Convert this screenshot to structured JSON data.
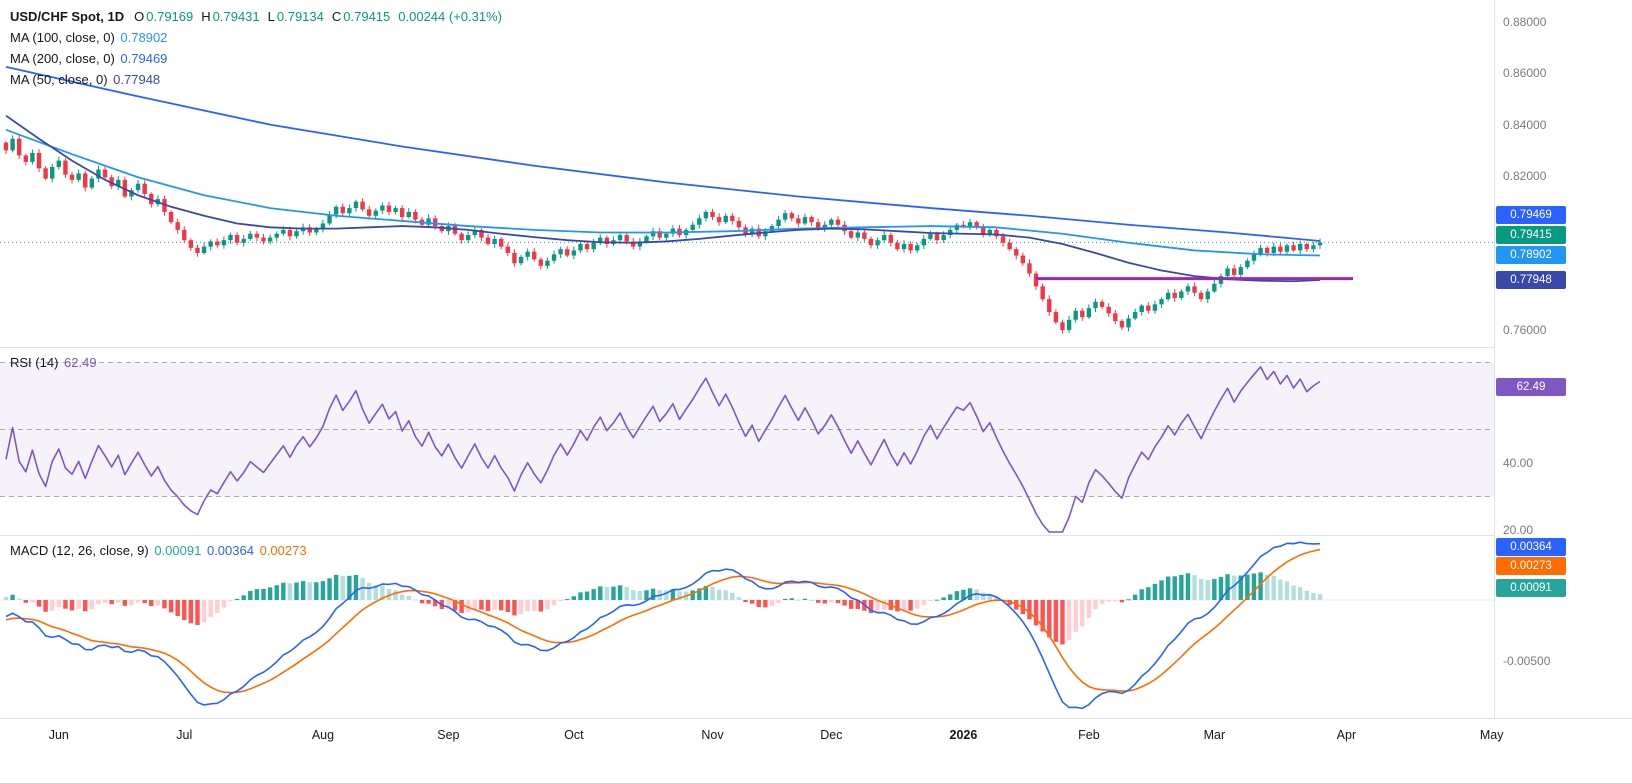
{
  "header": {
    "title": "USD/CHF Spot, 1D",
    "open_label": "O",
    "open": "0.79169",
    "high_label": "H",
    "high": "0.79431",
    "low_label": "L",
    "low": "0.79134",
    "close_label": "C",
    "close": "0.79415",
    "change": "0.00244 (+0.31%)"
  },
  "colors": {
    "up": "#089981",
    "down": "#F23645",
    "ma100": "#2196F3",
    "ma200": "#2962FF",
    "ma50": "#3949AB",
    "rsi": "#7E57C2",
    "macd": "#2962FF",
    "signal": "#FF6D00",
    "hist_pos": "#26A69A",
    "hist_pos_weak": "#B2DFDB",
    "hist_neg": "#FF5252",
    "hist_neg_weak": "#FFCDD2",
    "support": "#9C27B0",
    "axis_text": "#787b86",
    "band_line": "#9598a1"
  },
  "time_axis": {
    "labels": [
      {
        "text": "Jun",
        "i": 8
      },
      {
        "text": "Jul",
        "i": 27
      },
      {
        "text": "Aug",
        "i": 48
      },
      {
        "text": "Sep",
        "i": 67
      },
      {
        "text": "Oct",
        "i": 86
      },
      {
        "text": "Nov",
        "i": 107
      },
      {
        "text": "Dec",
        "i": 125
      },
      {
        "text": "2026",
        "i": 145,
        "year": true
      },
      {
        "text": "Feb",
        "i": 164
      },
      {
        "text": "Mar",
        "i": 183
      },
      {
        "text": "Apr",
        "i": 203
      },
      {
        "text": "May",
        "i": 225
      }
    ]
  },
  "chart_data": [
    {
      "type": "candlestick",
      "pane": "price",
      "symbol": "USD/CHF Spot",
      "interval": "1D",
      "ohlc_current": {
        "open": 0.79169,
        "high": 0.79431,
        "low": 0.79134,
        "close": 0.79415,
        "change": 0.00244,
        "change_pct": 0.31
      },
      "ylim": [
        0.7534,
        0.8886
      ],
      "yticks": [
        {
          "label": "0.88000",
          "value": 0.88
        },
        {
          "label": "0.86000",
          "value": 0.86
        },
        {
          "label": "0.84000",
          "value": 0.84
        },
        {
          "label": "0.82000",
          "value": 0.82
        },
        {
          "label": "0.76000",
          "value": 0.76
        }
      ],
      "first_open": 0.833,
      "history_closes": [
        0.842,
        0.8435,
        0.841,
        0.839,
        0.8415,
        0.84,
        0.838,
        0.8395,
        0.837,
        0.8385,
        0.836,
        0.8375,
        0.835,
        0.8365,
        0.834,
        0.8355,
        0.833,
        0.8345,
        0.8325,
        0.834,
        0.832,
        0.8335,
        0.8315,
        0.833,
        0.831,
        0.8325,
        0.8305,
        0.832,
        0.83,
        0.8315,
        0.8335,
        0.832,
        0.834,
        0.8325,
        0.833
      ],
      "closes": [
        0.83,
        0.8345,
        0.828,
        0.8255,
        0.829,
        0.823,
        0.819,
        0.8235,
        0.826,
        0.8205,
        0.8185,
        0.821,
        0.8155,
        0.819,
        0.8225,
        0.8195,
        0.816,
        0.8185,
        0.812,
        0.8145,
        0.817,
        0.813,
        0.809,
        0.811,
        0.806,
        0.802,
        0.799,
        0.795,
        0.792,
        0.79,
        0.7925,
        0.7945,
        0.793,
        0.795,
        0.797,
        0.794,
        0.7955,
        0.7975,
        0.796,
        0.7945,
        0.796,
        0.7975,
        0.799,
        0.7965,
        0.7985,
        0.8,
        0.798,
        0.7995,
        0.8015,
        0.805,
        0.808,
        0.8055,
        0.8075,
        0.81,
        0.807,
        0.8045,
        0.8065,
        0.8085,
        0.806,
        0.8075,
        0.804,
        0.806,
        0.803,
        0.801,
        0.8035,
        0.8005,
        0.7985,
        0.8005,
        0.7975,
        0.795,
        0.797,
        0.799,
        0.796,
        0.7935,
        0.7955,
        0.7925,
        0.79,
        0.786,
        0.7885,
        0.7905,
        0.7875,
        0.785,
        0.787,
        0.7895,
        0.7915,
        0.789,
        0.791,
        0.7935,
        0.7915,
        0.794,
        0.796,
        0.7935,
        0.795,
        0.797,
        0.7945,
        0.7925,
        0.7945,
        0.7965,
        0.7985,
        0.796,
        0.7975,
        0.7995,
        0.797,
        0.799,
        0.801,
        0.8035,
        0.806,
        0.804,
        0.802,
        0.8045,
        0.8025,
        0.8,
        0.7975,
        0.7995,
        0.7965,
        0.7985,
        0.8005,
        0.803,
        0.8055,
        0.8035,
        0.8015,
        0.804,
        0.802,
        0.7995,
        0.801,
        0.803,
        0.801,
        0.7985,
        0.796,
        0.798,
        0.7955,
        0.793,
        0.795,
        0.797,
        0.794,
        0.7915,
        0.7935,
        0.791,
        0.793,
        0.7955,
        0.7975,
        0.795,
        0.797,
        0.799,
        0.801,
        0.8005,
        0.802,
        0.8,
        0.7975,
        0.799,
        0.7965,
        0.794,
        0.7915,
        0.789,
        0.786,
        0.782,
        0.777,
        0.772,
        0.767,
        0.763,
        0.76,
        0.764,
        0.7675,
        0.765,
        0.7685,
        0.771,
        0.769,
        0.7665,
        0.7635,
        0.761,
        0.7645,
        0.767,
        0.7695,
        0.7675,
        0.77,
        0.772,
        0.7745,
        0.7725,
        0.775,
        0.777,
        0.7745,
        0.772,
        0.775,
        0.778,
        0.781,
        0.784,
        0.7815,
        0.7845,
        0.787,
        0.7895,
        0.792,
        0.79,
        0.7925,
        0.7905,
        0.793,
        0.791,
        0.7935,
        0.7915,
        0.793,
        0.79415
      ],
      "last_price": {
        "value": 0.79415,
        "label": "0.79415",
        "color": "#089981"
      },
      "ma_lines": [
        {
          "label": "MA (100, close, 0)",
          "value_str": "0.78902",
          "value": 0.78902,
          "color": "#2196F3",
          "points": [
            [
              0,
              0.838
            ],
            [
              10,
              0.8285
            ],
            [
              20,
              0.8195
            ],
            [
              30,
              0.8125
            ],
            [
              40,
              0.8075
            ],
            [
              50,
              0.8045
            ],
            [
              60,
              0.8025
            ],
            [
              70,
              0.8005
            ],
            [
              80,
              0.799
            ],
            [
              90,
              0.798
            ],
            [
              100,
              0.798
            ],
            [
              110,
              0.7985
            ],
            [
              120,
              0.7995
            ],
            [
              130,
              0.8
            ],
            [
              140,
              0.8005
            ],
            [
              150,
              0.8
            ],
            [
              160,
              0.7975
            ],
            [
              170,
              0.794
            ],
            [
              180,
              0.791
            ],
            [
              190,
              0.7895
            ],
            [
              199,
              0.78902
            ]
          ]
        },
        {
          "label": "MA (200, close, 0)",
          "value_str": "0.79469",
          "value": 0.79469,
          "color": "#2962FF",
          "points": [
            [
              0,
              0.8625
            ],
            [
              20,
              0.851
            ],
            [
              40,
              0.84
            ],
            [
              60,
              0.8315
            ],
            [
              80,
              0.824
            ],
            [
              100,
              0.8175
            ],
            [
              120,
              0.812
            ],
            [
              140,
              0.8075
            ],
            [
              155,
              0.8045
            ],
            [
              170,
              0.801
            ],
            [
              185,
              0.798
            ],
            [
              199,
              0.79469
            ]
          ]
        },
        {
          "label": "MA (50, close, 0)",
          "value_str": "0.77948",
          "value": 0.77948,
          "color": "#3949AB",
          "points": [
            [
              0,
              0.8435
            ],
            [
              5,
              0.8345
            ],
            [
              10,
              0.826
            ],
            [
              15,
              0.8185
            ],
            [
              20,
              0.8125
            ],
            [
              25,
              0.808
            ],
            [
              30,
              0.8045
            ],
            [
              35,
              0.8015
            ],
            [
              40,
              0.8
            ],
            [
              45,
              0.7995
            ],
            [
              50,
              0.7995
            ],
            [
              55,
              0.8
            ],
            [
              60,
              0.8005
            ],
            [
              65,
              0.8
            ],
            [
              70,
              0.799
            ],
            [
              75,
              0.7975
            ],
            [
              80,
              0.7962
            ],
            [
              85,
              0.795
            ],
            [
              90,
              0.7942
            ],
            [
              95,
              0.794
            ],
            [
              100,
              0.7945
            ],
            [
              105,
              0.7955
            ],
            [
              110,
              0.7968
            ],
            [
              115,
              0.798
            ],
            [
              120,
              0.799
            ],
            [
              125,
              0.7995
            ],
            [
              130,
              0.7992
            ],
            [
              135,
              0.7985
            ],
            [
              140,
              0.7978
            ],
            [
              145,
              0.7975
            ],
            [
              150,
              0.7972
            ],
            [
              155,
              0.796
            ],
            [
              160,
              0.7935
            ],
            [
              165,
              0.79
            ],
            [
              170,
              0.7862
            ],
            [
              175,
              0.7832
            ],
            [
              180,
              0.781
            ],
            [
              185,
              0.7798
            ],
            [
              190,
              0.7792
            ],
            [
              195,
              0.779
            ],
            [
              199,
              0.77948
            ]
          ]
        }
      ],
      "support_line": {
        "value": 0.78,
        "from_i": 156,
        "to_i": 204,
        "color": "#9C27B0"
      }
    },
    {
      "type": "line",
      "pane": "rsi",
      "name": "RSI (14)",
      "period": 14,
      "current": {
        "value": 62.49,
        "label": "62.49"
      },
      "color": "#7E57C2",
      "bands": {
        "upper": 70,
        "middle": 50,
        "lower": 30
      },
      "yticks": [
        {
          "label": "40.00",
          "value": 40
        },
        {
          "label": "20.00",
          "value": 20
        }
      ],
      "ylim": [
        19,
        74.5
      ]
    },
    {
      "type": "macd",
      "pane": "macd",
      "name": "MACD (12, 26, close, 9)",
      "params": {
        "fast": 12,
        "slow": 26,
        "source": "close",
        "signal": 9
      },
      "current": {
        "histogram": {
          "label": "0.00091",
          "value": 0.00091,
          "color": "#26A69A"
        },
        "macd": {
          "label": "0.00364",
          "value": 0.00364,
          "color": "#2962FF"
        },
        "signal": {
          "label": "0.00273",
          "value": 0.00273,
          "color": "#FF6D00"
        }
      },
      "yticks": [
        {
          "label": "-0.00500",
          "value": -0.005
        }
      ],
      "ylim": [
        -0.0097,
        0.0053
      ]
    }
  ]
}
